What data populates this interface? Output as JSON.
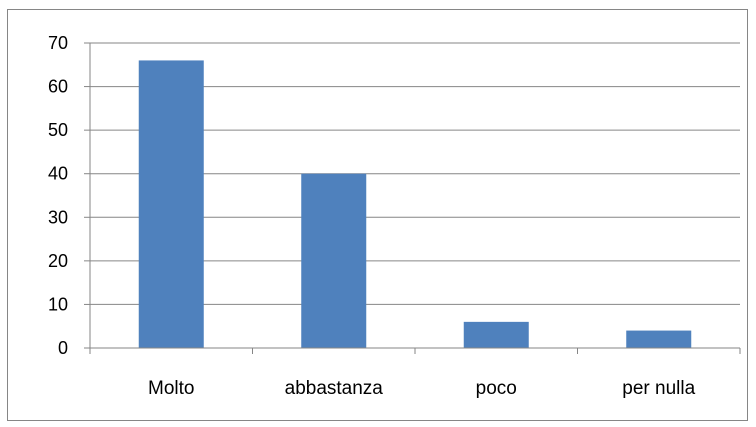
{
  "chart_data": {
    "type": "bar",
    "categories": [
      "Molto",
      "abbastanza",
      "poco",
      "per nulla"
    ],
    "values": [
      66,
      40,
      6,
      4
    ],
    "title": "",
    "xlabel": "",
    "ylabel": "",
    "ylim": [
      0,
      70
    ],
    "yticks": [
      0,
      10,
      20,
      30,
      40,
      50,
      60,
      70
    ],
    "grid": true,
    "legend": "none",
    "colors": {
      "bar": "#4f81bd",
      "grid": "#868686",
      "axis": "#868686",
      "frame": "#868686"
    }
  }
}
